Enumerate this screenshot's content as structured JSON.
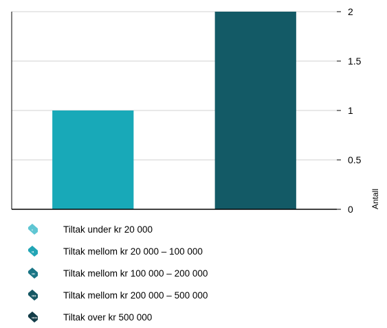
{
  "chart_data": {
    "type": "bar",
    "categories": [
      "",
      ""
    ],
    "values": [
      1,
      2
    ],
    "bar_colors": [
      "#18a9b8",
      "#135a66"
    ],
    "ylabel": "Antall",
    "ylim": [
      0,
      2
    ],
    "y_ticks": [
      0,
      0.5,
      1,
      1.5,
      2
    ],
    "y_tick_labels": [
      "0",
      "0.5",
      "1",
      "1.5",
      "2"
    ],
    "y_axis_side": "right",
    "grid": true,
    "legend_position": "bottom-left"
  },
  "legend": {
    "items": [
      {
        "label": "Tiltak under kr 20 000",
        "color": "#5fc6d3",
        "icon": "tag-icon"
      },
      {
        "label": "Tiltak mellom kr 20 000 – 100 000",
        "color": "#22a5b5",
        "icon": "tag-icon"
      },
      {
        "label": "Tiltak mellom kr 100 000 – 200 000",
        "color": "#1a7585",
        "icon": "tag-icon"
      },
      {
        "label": "Tiltak mellom kr 200 000 – 500 000",
        "color": "#165864",
        "icon": "tag-icon"
      },
      {
        "label": "Tiltak over kr 500 000",
        "color": "#133c48",
        "icon": "tag-icon"
      }
    ]
  }
}
